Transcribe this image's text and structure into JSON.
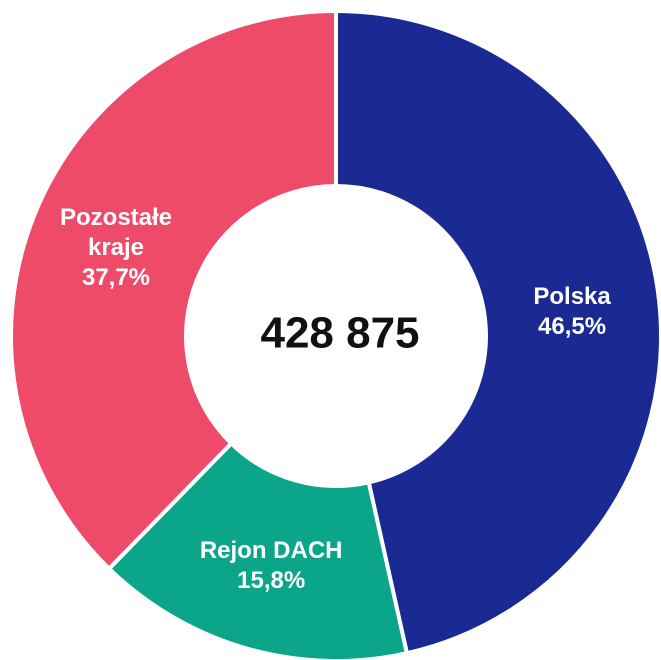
{
  "chart_data": {
    "type": "pie",
    "categories": [
      "Polska",
      "Rejon DACH",
      "Pozostałe kraje"
    ],
    "values": [
      46.5,
      15.8,
      37.7
    ],
    "value_labels": [
      "46,5%",
      "15,8%",
      "37,7%"
    ],
    "colors": [
      "#1b2a92",
      "#0ba68a",
      "#ee4a6a"
    ],
    "center_label": "428 875"
  }
}
